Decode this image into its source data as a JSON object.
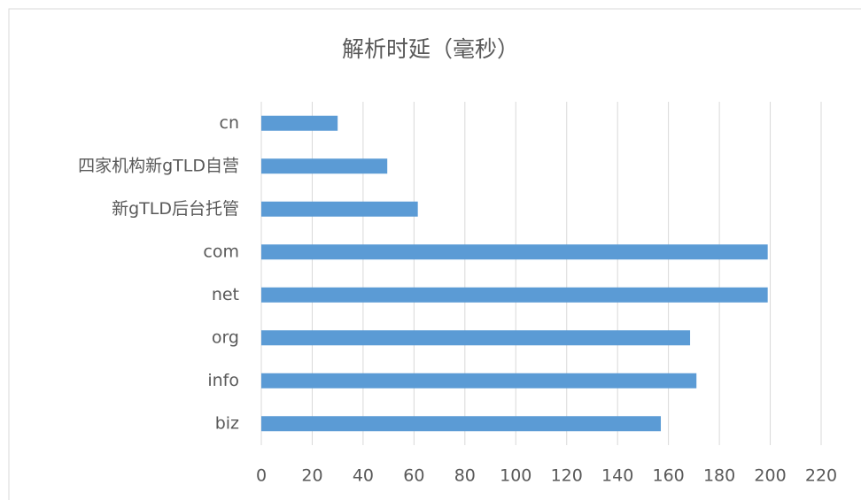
{
  "chart_data": {
    "type": "bar",
    "orientation": "horizontal",
    "title": "解析时延（毫秒）",
    "categories": [
      "cn",
      "四家机构新gTLD自营",
      "新gTLD后台托管",
      "com",
      "net",
      "org",
      "info",
      "biz"
    ],
    "values": [
      30,
      49.5,
      61.5,
      199,
      199,
      168.5,
      171,
      157
    ],
    "color": "#5b9bd5",
    "xlim": [
      0,
      220
    ],
    "xticks": [
      0,
      20,
      40,
      60,
      80,
      100,
      120,
      140,
      160,
      180,
      200,
      220
    ],
    "grid": true
  }
}
